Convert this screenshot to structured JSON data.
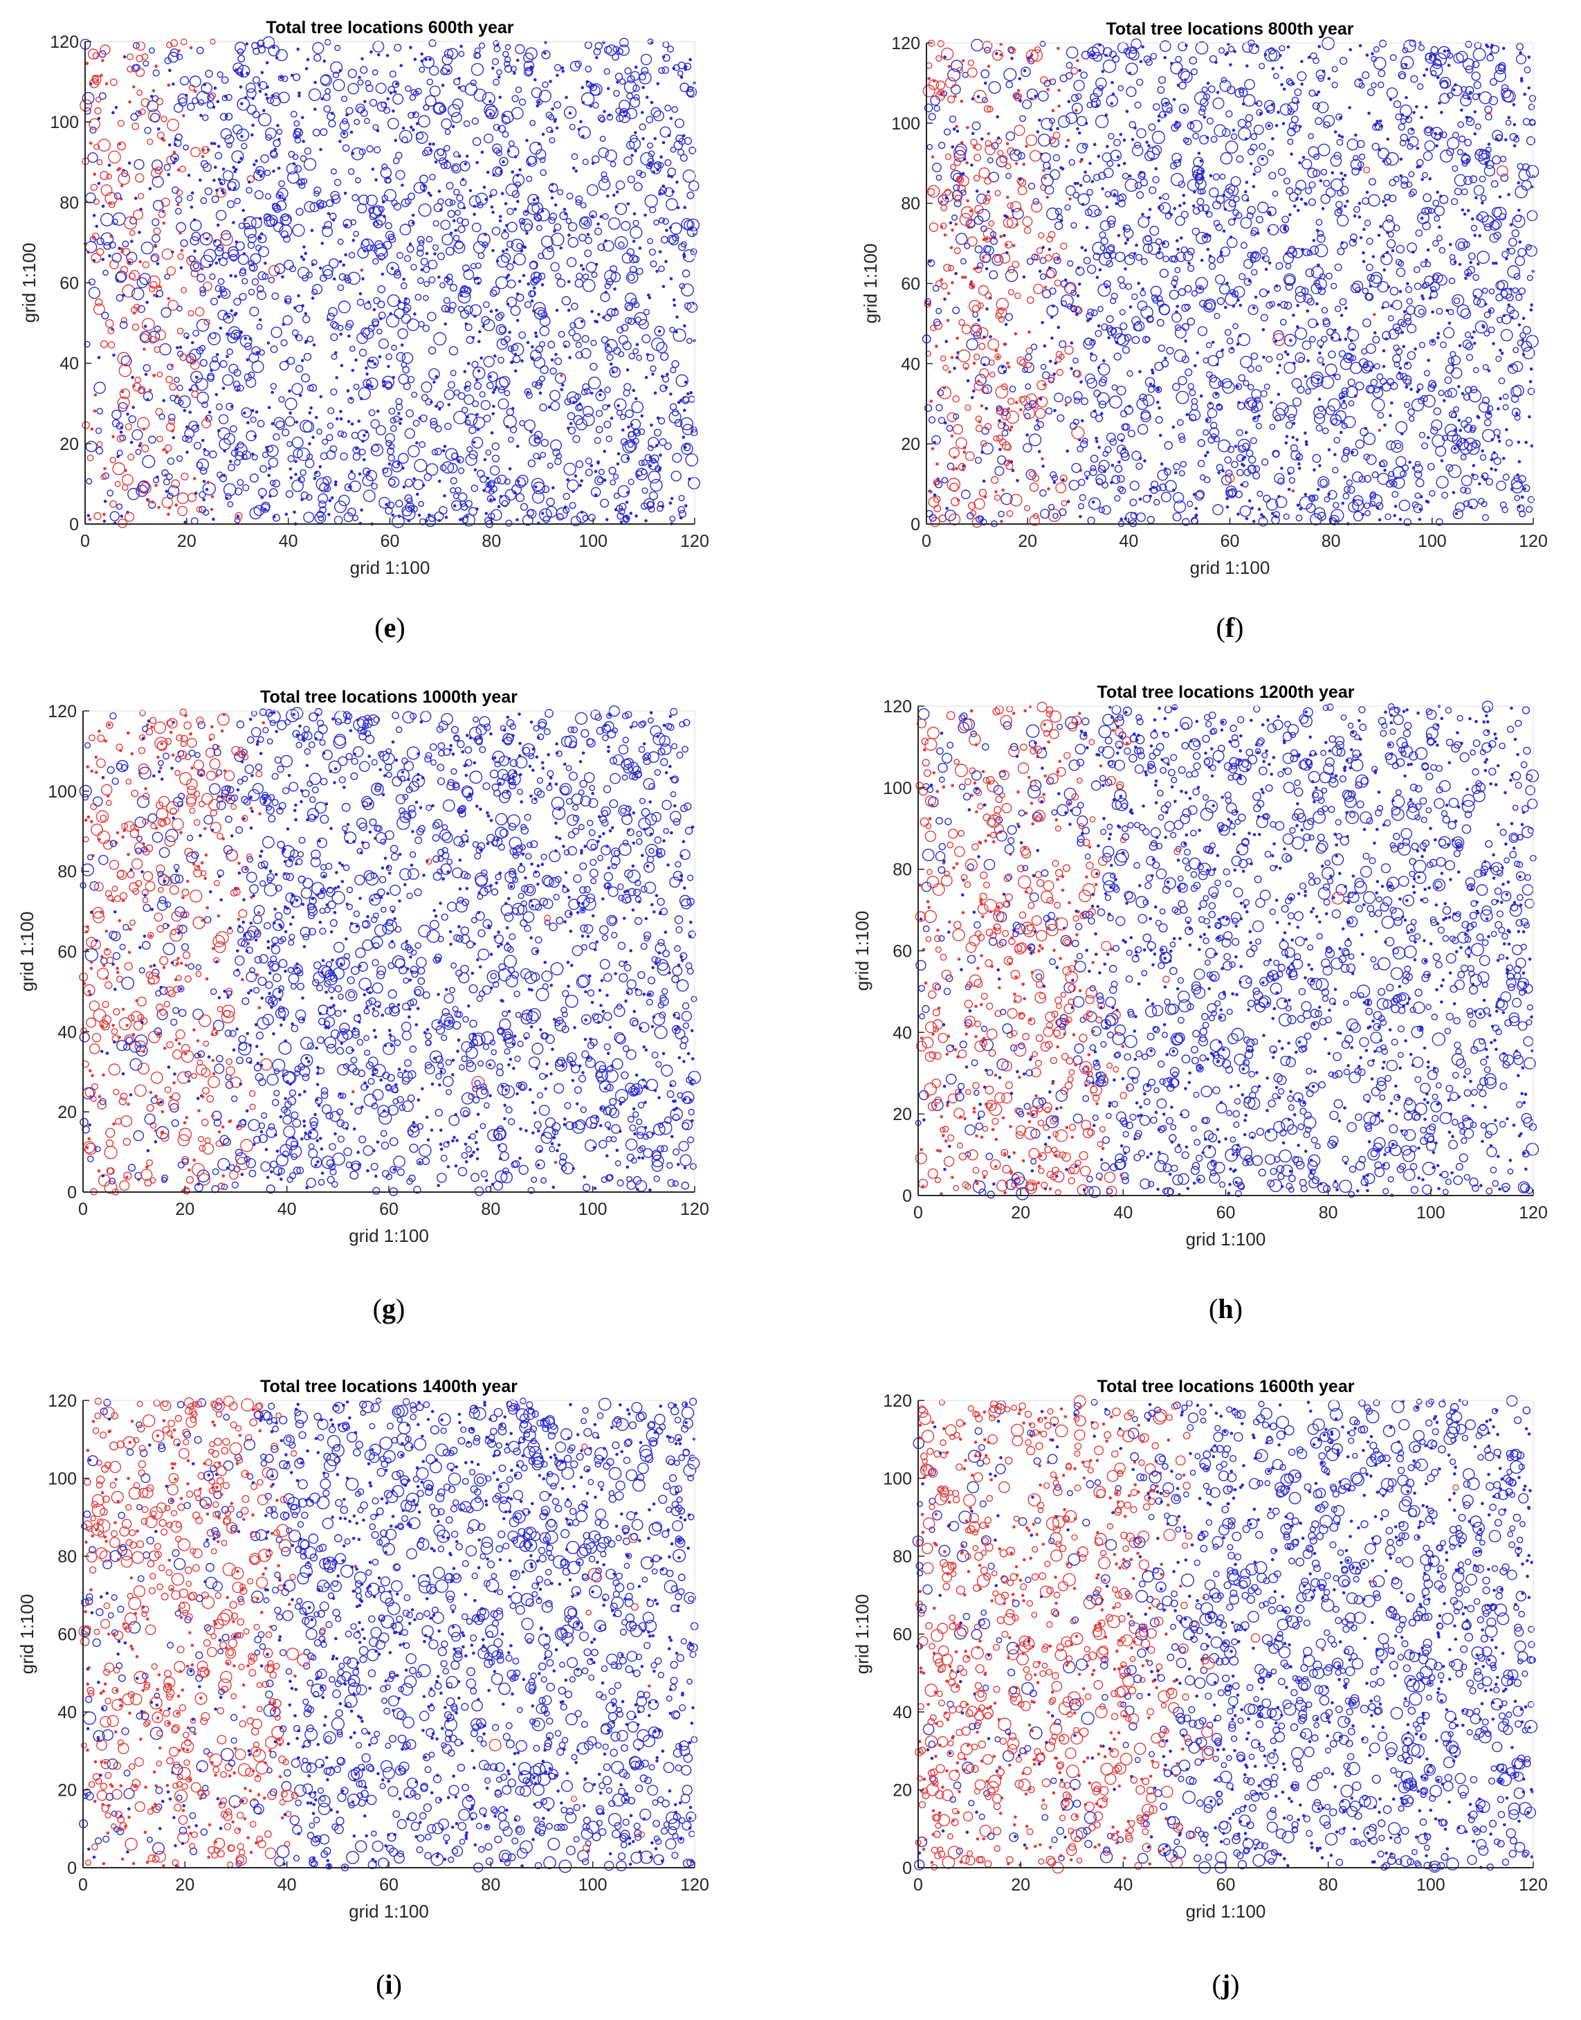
{
  "figure": {
    "colors": {
      "blue_trees": "#2b2bd0",
      "red_trees": "#e33a3a",
      "axes": "#262626"
    },
    "caption_open": "(",
    "caption_close": ")"
  },
  "chart_data": [
    {
      "type": "scatter",
      "panel_label": "e",
      "title": "Total tree locations 600th year",
      "xlabel": "grid 1:100",
      "ylabel": "grid 1:100",
      "xlim": [
        0,
        120
      ],
      "ylim": [
        0,
        120
      ],
      "xticks": [
        0,
        20,
        40,
        60,
        80,
        100,
        120
      ],
      "yticks": [
        0,
        20,
        40,
        60,
        80,
        100,
        120
      ],
      "grid": false,
      "point_density": 2600,
      "red_front_x": [
        14,
        28
      ],
      "red_fraction": 0.55,
      "series_colors": [
        "blue",
        "red"
      ]
    },
    {
      "type": "scatter",
      "panel_label": "f",
      "title": "Total tree locations 800th year",
      "xlabel": "grid 1:100",
      "ylabel": "grid 1:100",
      "xlim": [
        0,
        120
      ],
      "ylim": [
        0,
        120
      ],
      "xticks": [
        0,
        20,
        40,
        60,
        80,
        100,
        120
      ],
      "yticks": [
        0,
        20,
        40,
        60,
        80,
        100,
        120
      ],
      "grid": false,
      "point_density": 2600,
      "red_front_x": [
        20,
        32
      ],
      "red_fraction": 0.6,
      "series_colors": [
        "blue",
        "red"
      ]
    },
    {
      "type": "scatter",
      "panel_label": "g",
      "title": "Total tree locations 1000th year",
      "xlabel": "grid 1:100",
      "ylabel": "grid 1:100",
      "xlim": [
        0,
        120
      ],
      "ylim": [
        0,
        120
      ],
      "xticks": [
        0,
        20,
        40,
        60,
        80,
        100,
        120
      ],
      "yticks": [
        0,
        20,
        40,
        60,
        80,
        100,
        120
      ],
      "grid": false,
      "point_density": 2600,
      "red_front_x": [
        24,
        36
      ],
      "red_fraction": 0.65,
      "series_colors": [
        "blue",
        "red"
      ]
    },
    {
      "type": "scatter",
      "panel_label": "h",
      "title": "Total tree locations 1200th year",
      "xlabel": "grid 1:100",
      "ylabel": "grid 1:100",
      "xlim": [
        0,
        120
      ],
      "ylim": [
        0,
        120
      ],
      "xticks": [
        0,
        20,
        40,
        60,
        80,
        100,
        120
      ],
      "yticks": [
        0,
        20,
        40,
        60,
        80,
        100,
        120
      ],
      "grid": false,
      "point_density": 2600,
      "red_front_x": [
        28,
        42
      ],
      "red_fraction": 0.7,
      "series_colors": [
        "blue",
        "red"
      ]
    },
    {
      "type": "scatter",
      "panel_label": "i",
      "title": "Total tree locations 1400th year",
      "xlabel": "grid 1:100",
      "ylabel": "grid 1:100",
      "xlim": [
        0,
        120
      ],
      "ylim": [
        0,
        120
      ],
      "xticks": [
        0,
        20,
        40,
        60,
        80,
        100,
        120
      ],
      "yticks": [
        0,
        20,
        40,
        60,
        80,
        100,
        120
      ],
      "grid": false,
      "point_density": 2600,
      "red_front_x": [
        32,
        44
      ],
      "red_fraction": 0.75,
      "series_colors": [
        "blue",
        "red"
      ]
    },
    {
      "type": "scatter",
      "panel_label": "j",
      "title": "Total tree locations 1600th year",
      "xlabel": "grid 1:100",
      "ylabel": "grid 1:100",
      "xlim": [
        0,
        120
      ],
      "ylim": [
        0,
        120
      ],
      "xticks": [
        0,
        20,
        40,
        60,
        80,
        100,
        120
      ],
      "yticks": [
        0,
        20,
        40,
        60,
        80,
        100,
        120
      ],
      "grid": false,
      "point_density": 2600,
      "red_front_x": [
        40,
        58
      ],
      "red_fraction": 0.78,
      "series_colors": [
        "blue",
        "red"
      ]
    }
  ]
}
